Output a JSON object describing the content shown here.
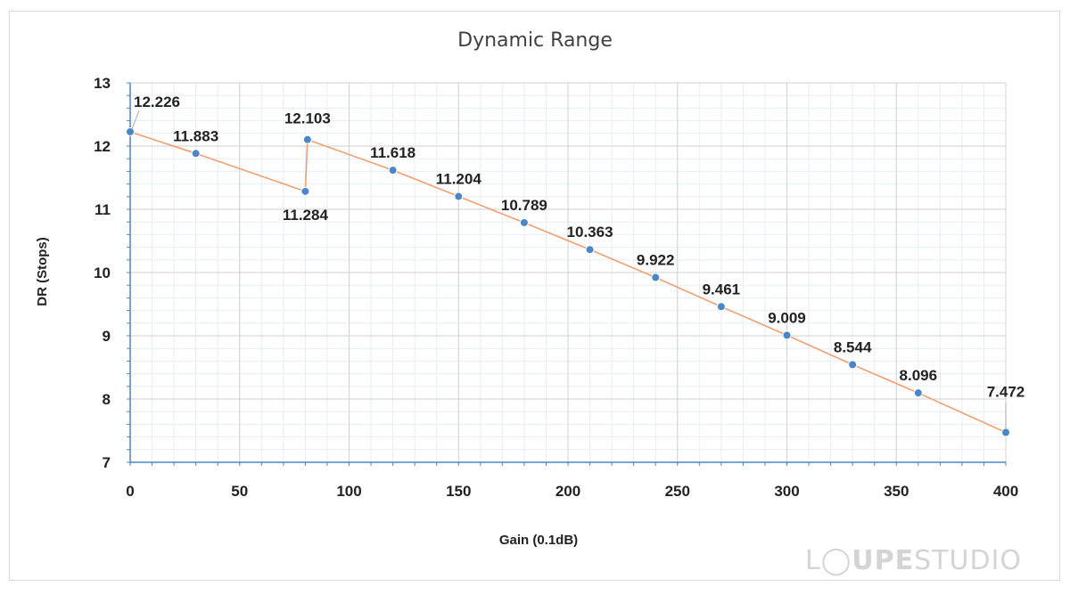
{
  "chart_data": {
    "type": "line",
    "title": "Dynamic Range",
    "xlabel": "Gain (0.1dB)",
    "ylabel": "DR (Stops)",
    "xlim": [
      0,
      400
    ],
    "ylim": [
      7,
      13
    ],
    "x_ticks": [
      0,
      50,
      100,
      150,
      200,
      250,
      300,
      350,
      400
    ],
    "y_ticks": [
      7,
      8,
      9,
      10,
      11,
      12,
      13
    ],
    "grid": true,
    "legend": "none",
    "series": [
      {
        "name": "DR",
        "color": "#f0a070",
        "marker_color": "#4a86c8",
        "x": [
          0,
          30,
          80,
          81,
          120,
          150,
          180,
          210,
          240,
          270,
          300,
          330,
          360,
          400
        ],
        "y": [
          12.226,
          11.883,
          11.284,
          12.103,
          11.618,
          11.204,
          10.789,
          10.363,
          9.922,
          9.461,
          9.009,
          8.544,
          8.096,
          7.472
        ],
        "labels": [
          "12.226",
          "11.883",
          "11.284",
          "12.103",
          "11.618",
          "11.204",
          "10.789",
          "10.363",
          "9.922",
          "9.461",
          "9.009",
          "8.544",
          "8.096",
          "7.472"
        ]
      }
    ]
  },
  "watermark": {
    "part1": "L",
    "part2": "UPE",
    "part3": "STUDIO"
  }
}
